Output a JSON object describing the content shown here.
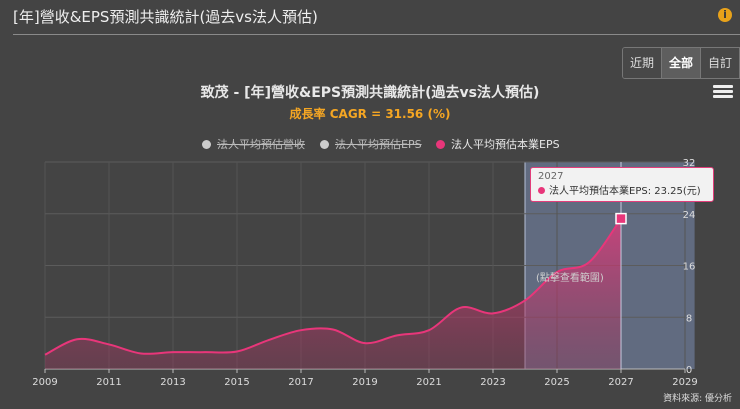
{
  "header": {
    "title": "[年]營收&EPS預測共識統計(過去vs法人預估)",
    "info_icon": "info-icon"
  },
  "range_tabs": [
    {
      "label": "近期",
      "active": false
    },
    {
      "label": "全部",
      "active": true
    },
    {
      "label": "自訂",
      "active": false
    }
  ],
  "menu_icon": "hamburger-menu-icon",
  "colors": {
    "eps_series": "#e8367a",
    "forecast_band": "#7a8db3",
    "cagr_text": "#f5a623"
  },
  "chart_data": {
    "type": "area",
    "title": "致茂 - [年]營收&EPS預測共識統計(過去vs法人預估)",
    "subtitle": "成長率 CAGR = 31.56 (%)",
    "legend": [
      {
        "name": "法人平均預估營收",
        "visible": false
      },
      {
        "name": "法人平均預估EPS",
        "visible": false
      },
      {
        "name": "法人平均預估本業EPS",
        "visible": true
      }
    ],
    "legend_position": "top-center",
    "x_ticks": [
      "2009",
      "2011",
      "2013",
      "2015",
      "2017",
      "2019",
      "2021",
      "2023",
      "2025",
      "2027",
      "2029"
    ],
    "x_range": [
      2009,
      2029.3
    ],
    "y_ticks": [
      "0",
      "8",
      "16",
      "24",
      "32"
    ],
    "y_range": [
      0,
      32
    ],
    "y_axis_position": "right",
    "series": [
      {
        "name": "法人平均預估本業EPS",
        "x": [
          2009,
          2010,
          2011,
          2012,
          2013,
          2014,
          2015,
          2016,
          2017,
          2018,
          2019,
          2020,
          2021,
          2022,
          2023,
          2024,
          2025,
          2026,
          2027
        ],
        "y": [
          2.2,
          4.6,
          3.8,
          2.4,
          2.6,
          2.6,
          2.7,
          4.5,
          6.0,
          6.1,
          4.0,
          5.2,
          6.0,
          9.5,
          8.6,
          10.6,
          15.0,
          16.5,
          23.25
        ]
      }
    ],
    "forecast_band": {
      "from": 2024,
      "to": 2029.3
    },
    "zoom_hint": "(點擊查看範圍)",
    "tooltip": {
      "year": "2027",
      "label": "法人平均預估本業EPS: 23.25(元)"
    },
    "grid": true
  },
  "source": "資料來源: 優分析"
}
